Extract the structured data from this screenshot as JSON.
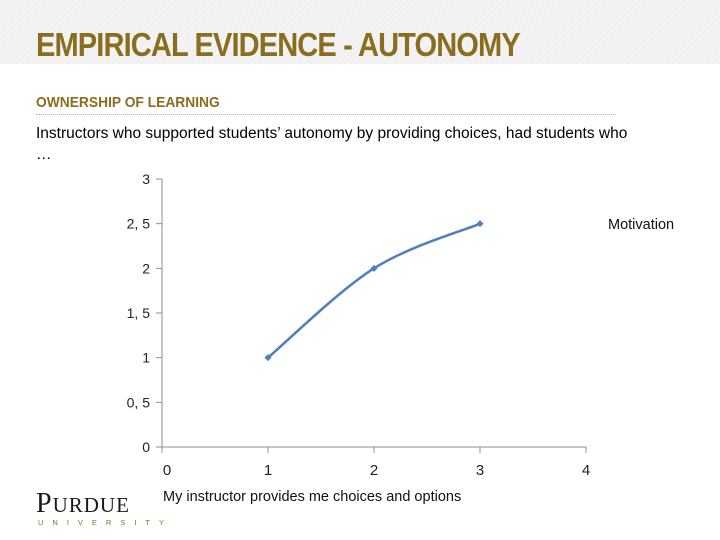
{
  "slide": {
    "title": "EMPIRICAL EVIDENCE - AUTONOMY",
    "subtitle": "OWNERSHIP OF LEARNING",
    "body": "Instructors who supported students’ autonomy by providing choices, had students who …"
  },
  "logo": {
    "word_first": "P",
    "word_rest": "URDUE",
    "sub": "UNIVERSITY"
  },
  "colors": {
    "title": "#8a6d1e",
    "series": "#4f7fbe",
    "axis": "#8c8c8c"
  },
  "chart_data": {
    "type": "line",
    "title": "",
    "xlabel": "My instructor provides me choices and options",
    "ylabel": "",
    "xlim": [
      0,
      4
    ],
    "ylim": [
      0,
      3
    ],
    "x_ticks": [
      0,
      1,
      2,
      3,
      4
    ],
    "x_tick_labels": [
      "0",
      "1",
      "2",
      "3",
      "4"
    ],
    "y_ticks": [
      0,
      0.5,
      1,
      1.5,
      2,
      2.5,
      3
    ],
    "y_tick_labels": [
      "0",
      "0, 5",
      "1",
      "1, 5",
      "2",
      "2, 5",
      "3"
    ],
    "smooth": true,
    "grid": false,
    "legend": "right",
    "series": [
      {
        "name": "Motivation",
        "x": [
          1,
          2,
          3
        ],
        "values": [
          1,
          2,
          2.5
        ]
      }
    ]
  }
}
